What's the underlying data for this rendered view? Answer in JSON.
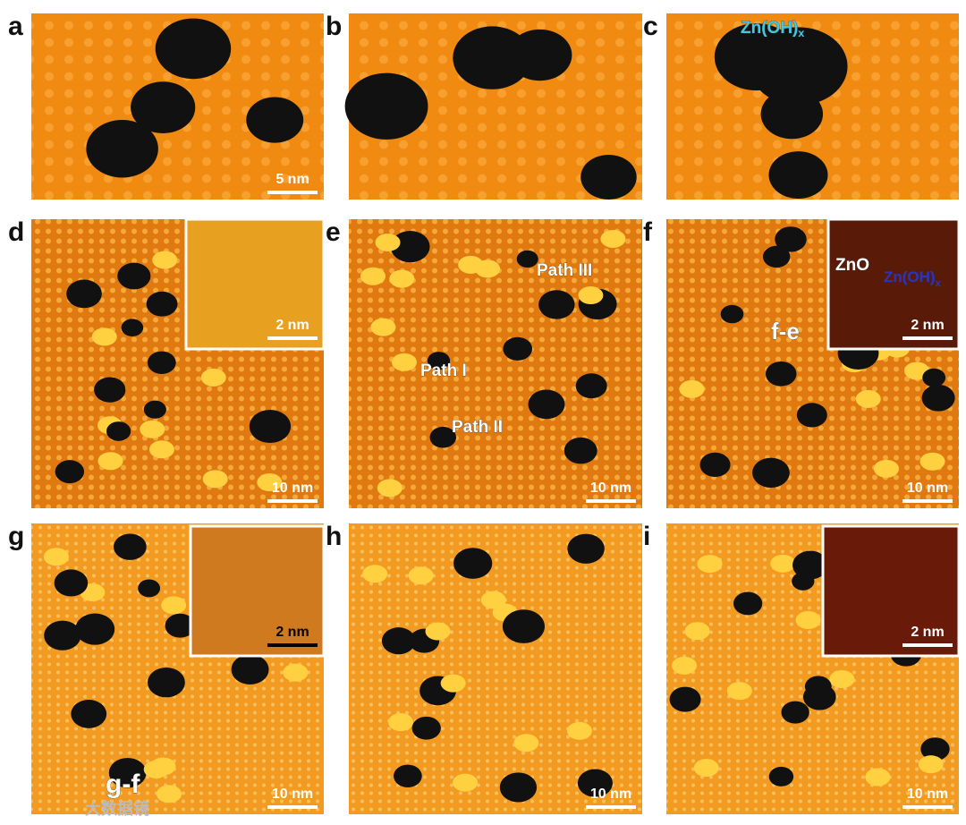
{
  "panels": [
    {
      "label": "a",
      "scale_bar": "5 nm"
    },
    {
      "label": "b"
    },
    {
      "label": "c",
      "annotations": [
        {
          "text": "Zn(OH)",
          "subscript": "x"
        }
      ]
    },
    {
      "label": "d",
      "scale_bar": "10 nm",
      "inset_scale_bar": "2 nm"
    },
    {
      "label": "e",
      "scale_bar": "10 nm",
      "annotations": [
        "Path III",
        "Path I",
        "Path II"
      ]
    },
    {
      "label": "f",
      "scale_bar": "10 nm",
      "inset_scale_bar": "2 nm",
      "annotations": [
        "f-e"
      ],
      "inset_annotations": [
        "ZnO",
        {
          "text": "Zn(OH)",
          "subscript": "x"
        }
      ]
    },
    {
      "label": "g",
      "scale_bar": "10 nm",
      "inset_scale_bar": "2 nm",
      "annotations": [
        "g-f"
      ]
    },
    {
      "label": "h",
      "scale_bar": "10 nm"
    },
    {
      "label": "i",
      "scale_bar": "10 nm",
      "inset_scale_bar": "2 nm"
    }
  ],
  "watermark": "大数据镜"
}
